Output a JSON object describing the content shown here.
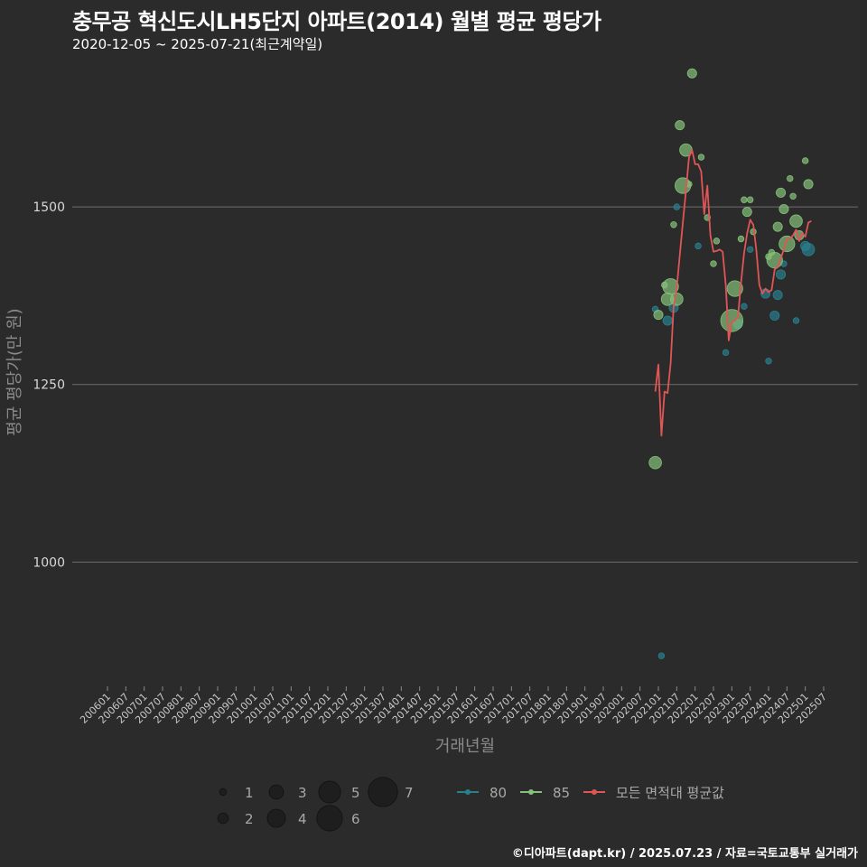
{
  "header": {
    "title": "충무공 혁신도시LH5단지 아파트(2014) 월별 평균 평당가",
    "subtitle": "2020-12-05 ~ 2025-07-21(최근계약일)"
  },
  "footer": {
    "credit": "©디아파트(dapt.kr) / 2025.07.23 / 자료=국토교통부 실거래가"
  },
  "colors": {
    "background": "#2b2b2b",
    "series_80": "#2a7f8e",
    "series_85": "#86c07a",
    "series_avg": "#e05555"
  },
  "chart_data": {
    "type": "scatter",
    "title": "충무공 혁신도시LH5단지 아파트(2014) 월별 평균 평당가",
    "xlabel": "거래년월",
    "ylabel": "평균 평당가(만 원)",
    "ylim": [
      825,
      1715
    ],
    "yticks": [
      1000,
      1250,
      1500
    ],
    "x_start": "2006-01",
    "x_end": "2025-07",
    "x_ticks": [
      "200601",
      "200607",
      "200701",
      "200707",
      "200801",
      "200807",
      "200901",
      "200907",
      "201001",
      "201007",
      "201101",
      "201107",
      "201201",
      "201207",
      "201301",
      "201307",
      "201401",
      "201407",
      "201501",
      "201507",
      "201601",
      "201607",
      "201701",
      "201707",
      "201801",
      "201807",
      "201901",
      "201907",
      "202001",
      "202007",
      "202101",
      "202107",
      "202201",
      "202207",
      "202301",
      "202307",
      "202401",
      "202407",
      "202501",
      "202507"
    ],
    "legend": {
      "size_title": "",
      "sizes": [
        1,
        2,
        3,
        4,
        5,
        6,
        7
      ],
      "size_labels": [
        "1",
        "2",
        "3",
        "4",
        "5",
        "6",
        "7"
      ],
      "series_labels": [
        "80",
        "85",
        "모든 면적대 평균값"
      ]
    },
    "series": [
      {
        "name": "80",
        "points": [
          {
            "x": "2020-12",
            "y": 1356,
            "n": 1
          },
          {
            "x": "2021-02",
            "y": 868,
            "n": 1
          },
          {
            "x": "2021-04",
            "y": 1340,
            "n": 2
          },
          {
            "x": "2021-06",
            "y": 1358,
            "n": 2
          },
          {
            "x": "2021-07",
            "y": 1500,
            "n": 1
          },
          {
            "x": "2022-02",
            "y": 1445,
            "n": 1
          },
          {
            "x": "2022-11",
            "y": 1295,
            "n": 1
          },
          {
            "x": "2023-03",
            "y": 1335,
            "n": 2
          },
          {
            "x": "2023-05",
            "y": 1360,
            "n": 1
          },
          {
            "x": "2023-07",
            "y": 1440,
            "n": 1
          },
          {
            "x": "2023-12",
            "y": 1378,
            "n": 2
          },
          {
            "x": "2024-01",
            "y": 1283,
            "n": 1
          },
          {
            "x": "2024-03",
            "y": 1347,
            "n": 2
          },
          {
            "x": "2024-04",
            "y": 1376,
            "n": 2
          },
          {
            "x": "2024-05",
            "y": 1405,
            "n": 2
          },
          {
            "x": "2024-06",
            "y": 1420,
            "n": 1
          },
          {
            "x": "2024-10",
            "y": 1340,
            "n": 1
          },
          {
            "x": "2025-01",
            "y": 1445,
            "n": 2
          },
          {
            "x": "2025-02",
            "y": 1440,
            "n": 3
          }
        ]
      },
      {
        "name": "85",
        "points": [
          {
            "x": "2020-12",
            "y": 1140,
            "n": 3
          },
          {
            "x": "2021-01",
            "y": 1348,
            "n": 2
          },
          {
            "x": "2021-03",
            "y": 1390,
            "n": 1
          },
          {
            "x": "2021-04",
            "y": 1370,
            "n": 3
          },
          {
            "x": "2021-05",
            "y": 1388,
            "n": 4
          },
          {
            "x": "2021-06",
            "y": 1475,
            "n": 1
          },
          {
            "x": "2021-07",
            "y": 1370,
            "n": 3
          },
          {
            "x": "2021-08",
            "y": 1615,
            "n": 2
          },
          {
            "x": "2021-09",
            "y": 1530,
            "n": 4
          },
          {
            "x": "2021-10",
            "y": 1580,
            "n": 3
          },
          {
            "x": "2021-11",
            "y": 1532,
            "n": 1
          },
          {
            "x": "2021-12",
            "y": 1688,
            "n": 2
          },
          {
            "x": "2022-03",
            "y": 1570,
            "n": 1
          },
          {
            "x": "2022-05",
            "y": 1485,
            "n": 1
          },
          {
            "x": "2022-07",
            "y": 1420,
            "n": 1
          },
          {
            "x": "2022-08",
            "y": 1452,
            "n": 1
          },
          {
            "x": "2023-01",
            "y": 1340,
            "n": 6
          },
          {
            "x": "2023-02",
            "y": 1385,
            "n": 4
          },
          {
            "x": "2023-04",
            "y": 1455,
            "n": 1
          },
          {
            "x": "2023-05",
            "y": 1510,
            "n": 1
          },
          {
            "x": "2023-06",
            "y": 1493,
            "n": 2
          },
          {
            "x": "2023-07",
            "y": 1510,
            "n": 1
          },
          {
            "x": "2023-08",
            "y": 1465,
            "n": 1
          },
          {
            "x": "2024-01",
            "y": 1430,
            "n": 1
          },
          {
            "x": "2024-02",
            "y": 1436,
            "n": 1
          },
          {
            "x": "2024-03",
            "y": 1425,
            "n": 4
          },
          {
            "x": "2024-04",
            "y": 1472,
            "n": 2
          },
          {
            "x": "2024-05",
            "y": 1520,
            "n": 2
          },
          {
            "x": "2024-06",
            "y": 1497,
            "n": 2
          },
          {
            "x": "2024-07",
            "y": 1448,
            "n": 4
          },
          {
            "x": "2024-08",
            "y": 1540,
            "n": 1
          },
          {
            "x": "2024-09",
            "y": 1515,
            "n": 1
          },
          {
            "x": "2024-10",
            "y": 1480,
            "n": 3
          },
          {
            "x": "2024-11",
            "y": 1460,
            "n": 2
          },
          {
            "x": "2025-01",
            "y": 1565,
            "n": 1
          },
          {
            "x": "2025-02",
            "y": 1532,
            "n": 2
          }
        ]
      },
      {
        "name": "모든 면적대 평균값",
        "type": "line",
        "points": [
          {
            "x": "2020-12",
            "y": 1240
          },
          {
            "x": "2021-01",
            "y": 1278
          },
          {
            "x": "2021-02",
            "y": 1178
          },
          {
            "x": "2021-03",
            "y": 1240
          },
          {
            "x": "2021-04",
            "y": 1238
          },
          {
            "x": "2021-05",
            "y": 1280
          },
          {
            "x": "2021-06",
            "y": 1360
          },
          {
            "x": "2021-07",
            "y": 1385
          },
          {
            "x": "2021-08",
            "y": 1432
          },
          {
            "x": "2021-09",
            "y": 1478
          },
          {
            "x": "2021-10",
            "y": 1522
          },
          {
            "x": "2021-11",
            "y": 1570
          },
          {
            "x": "2021-12",
            "y": 1580
          },
          {
            "x": "2022-01",
            "y": 1560
          },
          {
            "x": "2022-02",
            "y": 1560
          },
          {
            "x": "2022-03",
            "y": 1550
          },
          {
            "x": "2022-04",
            "y": 1490
          },
          {
            "x": "2022-05",
            "y": 1530
          },
          {
            "x": "2022-06",
            "y": 1460
          },
          {
            "x": "2022-07",
            "y": 1437
          },
          {
            "x": "2022-08",
            "y": 1438
          },
          {
            "x": "2022-09",
            "y": 1440
          },
          {
            "x": "2022-10",
            "y": 1437
          },
          {
            "x": "2022-11",
            "y": 1390
          },
          {
            "x": "2022-12",
            "y": 1312
          },
          {
            "x": "2023-01",
            "y": 1338
          },
          {
            "x": "2023-02",
            "y": 1340
          },
          {
            "x": "2023-03",
            "y": 1345
          },
          {
            "x": "2023-04",
            "y": 1393
          },
          {
            "x": "2023-05",
            "y": 1435
          },
          {
            "x": "2023-06",
            "y": 1463
          },
          {
            "x": "2023-07",
            "y": 1482
          },
          {
            "x": "2023-08",
            "y": 1475
          },
          {
            "x": "2023-09",
            "y": 1440
          },
          {
            "x": "2023-10",
            "y": 1390
          },
          {
            "x": "2023-11",
            "y": 1378
          },
          {
            "x": "2023-12",
            "y": 1385
          },
          {
            "x": "2024-01",
            "y": 1380
          },
          {
            "x": "2024-02",
            "y": 1383
          },
          {
            "x": "2024-03",
            "y": 1412
          },
          {
            "x": "2024-04",
            "y": 1415
          },
          {
            "x": "2024-05",
            "y": 1428
          },
          {
            "x": "2024-06",
            "y": 1440
          },
          {
            "x": "2024-07",
            "y": 1455
          },
          {
            "x": "2024-08",
            "y": 1455
          },
          {
            "x": "2024-09",
            "y": 1460
          },
          {
            "x": "2024-10",
            "y": 1468
          },
          {
            "x": "2024-11",
            "y": 1452
          },
          {
            "x": "2024-12",
            "y": 1463
          },
          {
            "x": "2025-01",
            "y": 1458
          },
          {
            "x": "2025-02",
            "y": 1478
          },
          {
            "x": "2025-03",
            "y": 1480
          }
        ]
      }
    ]
  }
}
